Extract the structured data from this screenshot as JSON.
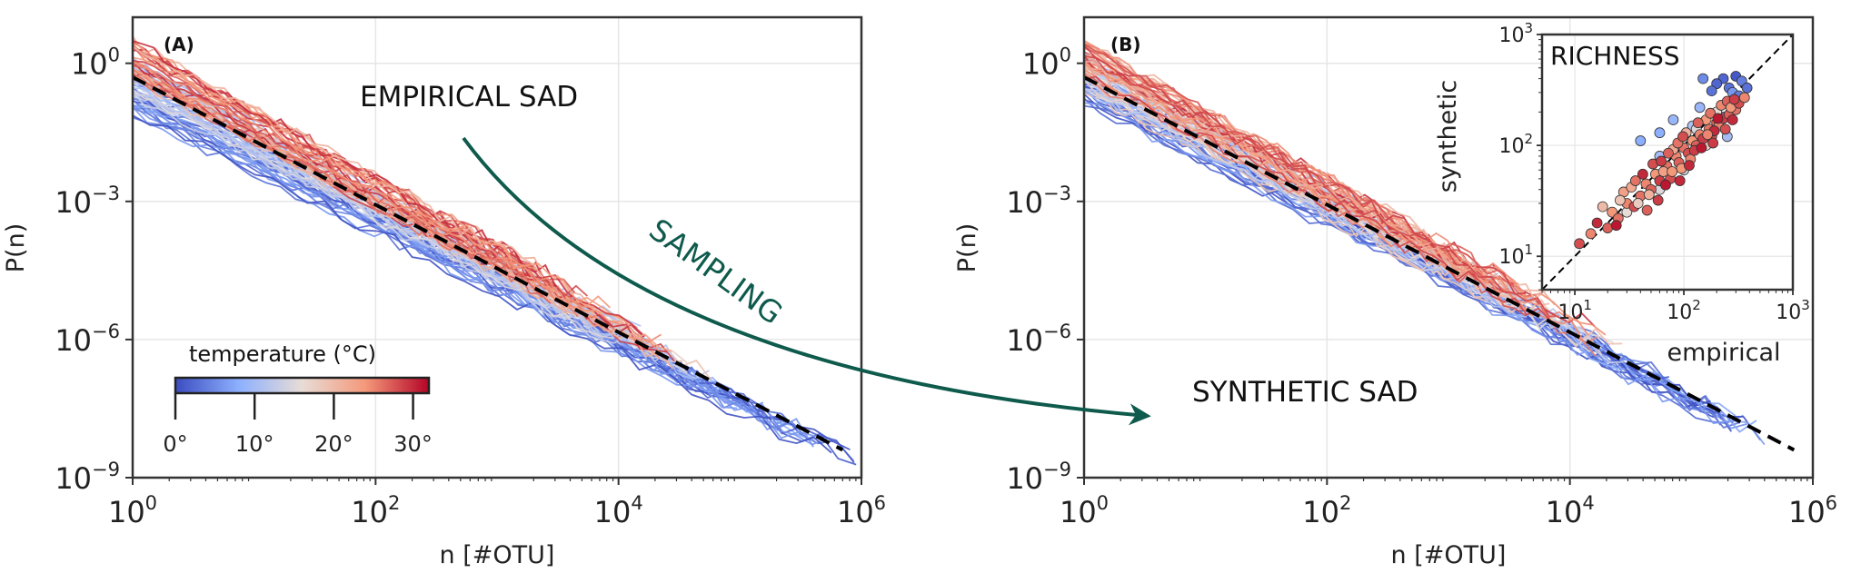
{
  "colors": {
    "cold": "#3b5fd9",
    "mid": "#e9e2dc",
    "warm": "#c8213a",
    "fit": "#000000",
    "arrow": "#0e5a4c",
    "grid": "#e6e6e6"
  },
  "colorbar": {
    "label": "temperature (°C)",
    "tick_labels": [
      "0°",
      "10°",
      "20°",
      "30°"
    ],
    "range": [
      0,
      32
    ]
  },
  "annotations": {
    "empirical": "EMPIRICAL SAD",
    "synthetic": "SYNTHETIC SAD",
    "sampling": "SAMPLING"
  },
  "chart_data": [
    {
      "panel": "(A)",
      "type": "line",
      "xlabel": "n [#OTU]",
      "ylabel": "P(n)",
      "x_scale": "log",
      "y_scale": "log",
      "xlim": [
        1,
        1000000
      ],
      "ylim": [
        1e-09,
        10
      ],
      "x_tick_exponents": [
        "0",
        "2",
        "4",
        "6"
      ],
      "y_tick_exponents": [
        "−9",
        "−6",
        "−3",
        "0"
      ],
      "grid": true,
      "fit_line": {
        "style": "dashed",
        "x": [
          1,
          700000
        ],
        "y": [
          0.5,
          4e-09
        ]
      },
      "series_groups": [
        {
          "temperature_range": [
            0,
            8
          ],
          "x_max": 1000000,
          "y_at_x1": 0.2
        },
        {
          "temperature_range": [
            8,
            20
          ],
          "x_max": 60000,
          "y_at_x1": 0.5
        },
        {
          "temperature_range": [
            20,
            31
          ],
          "x_max": 30000,
          "y_at_x1": 1.2
        }
      ]
    },
    {
      "panel": "(B)",
      "type": "line",
      "xlabel": "n [#OTU]",
      "ylabel": "P(n)",
      "x_scale": "log",
      "y_scale": "log",
      "xlim": [
        1,
        1000000
      ],
      "ylim": [
        1e-09,
        10
      ],
      "x_tick_exponents": [
        "0",
        "2",
        "4",
        "6"
      ],
      "y_tick_exponents": [
        "−9",
        "−6",
        "−3",
        "0"
      ],
      "grid": true,
      "fit_line": {
        "style": "dashed",
        "x": [
          1,
          700000
        ],
        "y": [
          0.5,
          4e-09
        ]
      },
      "series_groups": [
        {
          "temperature_range": [
            0,
            8
          ],
          "x_max": 400000,
          "y_at_x1": 0.3
        },
        {
          "temperature_range": [
            8,
            20
          ],
          "x_max": 30000,
          "y_at_x1": 0.6
        },
        {
          "temperature_range": [
            20,
            31
          ],
          "x_max": 20000,
          "y_at_x1": 1.2
        }
      ]
    },
    {
      "panel": "inset",
      "type": "scatter",
      "title": "RICHNESS",
      "xlabel": "empirical",
      "ylabel": "synthetic",
      "x_scale": "log",
      "y_scale": "log",
      "xlim": [
        5,
        1000
      ],
      "ylim": [
        5,
        1000
      ],
      "x_tick_exponents": [
        "1",
        "2",
        "3"
      ],
      "y_tick_exponents": [
        "1",
        "2",
        "3"
      ],
      "reference_line": "y = x",
      "points": [
        {
          "x": 230,
          "y": 400,
          "t": 2
        },
        {
          "x": 260,
          "y": 330,
          "t": 3
        },
        {
          "x": 300,
          "y": 420,
          "t": 1
        },
        {
          "x": 340,
          "y": 380,
          "t": 4
        },
        {
          "x": 200,
          "y": 360,
          "t": 2
        },
        {
          "x": 380,
          "y": 330,
          "t": 3
        },
        {
          "x": 150,
          "y": 400,
          "t": 5
        },
        {
          "x": 280,
          "y": 300,
          "t": 6
        },
        {
          "x": 320,
          "y": 280,
          "t": 4
        },
        {
          "x": 180,
          "y": 310,
          "t": 3
        },
        {
          "x": 60,
          "y": 130,
          "t": 8
        },
        {
          "x": 80,
          "y": 170,
          "t": 9
        },
        {
          "x": 120,
          "y": 150,
          "t": 11
        },
        {
          "x": 40,
          "y": 110,
          "t": 8
        },
        {
          "x": 60,
          "y": 80,
          "t": 10
        },
        {
          "x": 140,
          "y": 220,
          "t": 9
        },
        {
          "x": 230,
          "y": 180,
          "t": 12
        },
        {
          "x": 250,
          "y": 120,
          "t": 10
        },
        {
          "x": 100,
          "y": 60,
          "t": 14
        },
        {
          "x": 60,
          "y": 40,
          "t": 15
        },
        {
          "x": 30,
          "y": 25,
          "t": 16
        },
        {
          "x": 160,
          "y": 100,
          "t": 17
        },
        {
          "x": 130,
          "y": 140,
          "t": 15
        },
        {
          "x": 200,
          "y": 200,
          "t": 16
        },
        {
          "x": 14,
          "y": 16,
          "t": 25
        },
        {
          "x": 20,
          "y": 18,
          "t": 27
        },
        {
          "x": 22,
          "y": 25,
          "t": 24
        },
        {
          "x": 25,
          "y": 22,
          "t": 26
        },
        {
          "x": 30,
          "y": 30,
          "t": 25
        },
        {
          "x": 28,
          "y": 38,
          "t": 23
        },
        {
          "x": 35,
          "y": 28,
          "t": 28
        },
        {
          "x": 40,
          "y": 35,
          "t": 26
        },
        {
          "x": 45,
          "y": 45,
          "t": 25
        },
        {
          "x": 50,
          "y": 40,
          "t": 27
        },
        {
          "x": 55,
          "y": 55,
          "t": 24
        },
        {
          "x": 60,
          "y": 48,
          "t": 29
        },
        {
          "x": 70,
          "y": 65,
          "t": 26
        },
        {
          "x": 75,
          "y": 50,
          "t": 28
        },
        {
          "x": 85,
          "y": 80,
          "t": 25
        },
        {
          "x": 90,
          "y": 70,
          "t": 27
        },
        {
          "x": 100,
          "y": 95,
          "t": 26
        },
        {
          "x": 110,
          "y": 85,
          "t": 28
        },
        {
          "x": 120,
          "y": 110,
          "t": 24
        },
        {
          "x": 130,
          "y": 100,
          "t": 27
        },
        {
          "x": 140,
          "y": 125,
          "t": 25
        },
        {
          "x": 150,
          "y": 115,
          "t": 29
        },
        {
          "x": 170,
          "y": 140,
          "t": 26
        },
        {
          "x": 180,
          "y": 120,
          "t": 28
        },
        {
          "x": 200,
          "y": 160,
          "t": 27
        },
        {
          "x": 210,
          "y": 150,
          "t": 25
        },
        {
          "x": 230,
          "y": 175,
          "t": 29
        },
        {
          "x": 260,
          "y": 190,
          "t": 27
        },
        {
          "x": 280,
          "y": 170,
          "t": 30
        },
        {
          "x": 300,
          "y": 210,
          "t": 26
        },
        {
          "x": 33,
          "y": 42,
          "t": 22
        },
        {
          "x": 48,
          "y": 36,
          "t": 21
        },
        {
          "x": 65,
          "y": 58,
          "t": 23
        },
        {
          "x": 80,
          "y": 92,
          "t": 22
        },
        {
          "x": 95,
          "y": 62,
          "t": 24
        },
        {
          "x": 105,
          "y": 130,
          "t": 21
        },
        {
          "x": 115,
          "y": 75,
          "t": 25
        },
        {
          "x": 125,
          "y": 90,
          "t": 29
        },
        {
          "x": 160,
          "y": 170,
          "t": 24
        },
        {
          "x": 190,
          "y": 135,
          "t": 30
        },
        {
          "x": 220,
          "y": 230,
          "t": 25
        },
        {
          "x": 240,
          "y": 140,
          "t": 28
        },
        {
          "x": 18,
          "y": 28,
          "t": 20
        },
        {
          "x": 26,
          "y": 32,
          "t": 19
        },
        {
          "x": 38,
          "y": 30,
          "t": 18
        },
        {
          "x": 42,
          "y": 55,
          "t": 30
        },
        {
          "x": 52,
          "y": 68,
          "t": 28
        },
        {
          "x": 58,
          "y": 32,
          "t": 29
        },
        {
          "x": 68,
          "y": 44,
          "t": 31
        },
        {
          "x": 72,
          "y": 85,
          "t": 27
        },
        {
          "x": 88,
          "y": 105,
          "t": 26
        },
        {
          "x": 92,
          "y": 48,
          "t": 30
        },
        {
          "x": 135,
          "y": 160,
          "t": 27
        },
        {
          "x": 145,
          "y": 95,
          "t": 31
        },
        {
          "x": 175,
          "y": 195,
          "t": 26
        },
        {
          "x": 185,
          "y": 105,
          "t": 29
        },
        {
          "x": 250,
          "y": 250,
          "t": 27
        },
        {
          "x": 270,
          "y": 220,
          "t": 24
        },
        {
          "x": 320,
          "y": 240,
          "t": 28
        },
        {
          "x": 360,
          "y": 270,
          "t": 25
        },
        {
          "x": 11,
          "y": 13,
          "t": 28
        },
        {
          "x": 16,
          "y": 20,
          "t": 30
        },
        {
          "x": 24,
          "y": 19,
          "t": 31
        },
        {
          "x": 36,
          "y": 48,
          "t": 26
        },
        {
          "x": 46,
          "y": 26,
          "t": 27
        },
        {
          "x": 62,
          "y": 72,
          "t": 29
        },
        {
          "x": 78,
          "y": 58,
          "t": 24
        },
        {
          "x": 98,
          "y": 120,
          "t": 28
        },
        {
          "x": 112,
          "y": 66,
          "t": 30
        },
        {
          "x": 165,
          "y": 125,
          "t": 25
        },
        {
          "x": 205,
          "y": 175,
          "t": 31
        },
        {
          "x": 290,
          "y": 260,
          "t": 29
        }
      ]
    }
  ]
}
